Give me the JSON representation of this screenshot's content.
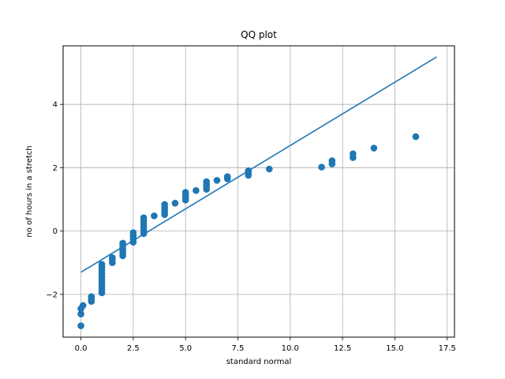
{
  "chart_data": {
    "type": "scatter",
    "title": "QQ plot",
    "xlabel": "standard normal",
    "ylabel": "no of hours in a stretch",
    "xlim": [
      -0.85,
      17.85
    ],
    "ylim": [
      -3.35,
      5.85
    ],
    "xticks": [
      0.0,
      2.5,
      5.0,
      7.5,
      10.0,
      12.5,
      15.0,
      17.5
    ],
    "xtick_labels": [
      "0.0",
      "2.5",
      "5.0",
      "7.5",
      "10.0",
      "12.5",
      "15.0",
      "17.5"
    ],
    "yticks": [
      -2,
      0,
      2,
      4
    ],
    "ytick_labels": [
      "−2",
      "0",
      "2",
      "4"
    ],
    "grid": true,
    "colors": {
      "series": "#1f77b4",
      "grid": "#b0b0b0"
    },
    "series": [
      {
        "kind": "points",
        "points": [
          [
            0,
            -2.99
          ],
          [
            0,
            -2.62
          ],
          [
            0,
            -2.45
          ],
          [
            0.1,
            -2.35
          ],
          [
            0.5,
            -2.22
          ],
          [
            0.5,
            -2.15
          ],
          [
            0.5,
            -2.07
          ],
          [
            1,
            -1.95
          ],
          [
            1,
            -1.85
          ],
          [
            1,
            -1.75
          ],
          [
            1,
            -1.65
          ],
          [
            1,
            -1.55
          ],
          [
            1,
            -1.45
          ],
          [
            1,
            -1.35
          ],
          [
            1,
            -1.25
          ],
          [
            1,
            -1.15
          ],
          [
            1,
            -1.05
          ],
          [
            1.5,
            -1.0
          ],
          [
            1.5,
            -0.92
          ],
          [
            1.5,
            -0.84
          ],
          [
            2,
            -0.78
          ],
          [
            2,
            -0.7
          ],
          [
            2,
            -0.62
          ],
          [
            2,
            -0.54
          ],
          [
            2,
            -0.46
          ],
          [
            2,
            -0.38
          ],
          [
            2.5,
            -0.35
          ],
          [
            2.5,
            -0.25
          ],
          [
            2.5,
            -0.15
          ],
          [
            2.5,
            -0.05
          ],
          [
            3,
            -0.08
          ],
          [
            3,
            0.02
          ],
          [
            3,
            0.12
          ],
          [
            3,
            0.22
          ],
          [
            3,
            0.32
          ],
          [
            3,
            0.42
          ],
          [
            3.5,
            0.48
          ],
          [
            4,
            0.52
          ],
          [
            4,
            0.6
          ],
          [
            4,
            0.68
          ],
          [
            4,
            0.76
          ],
          [
            4,
            0.84
          ],
          [
            4.5,
            0.88
          ],
          [
            5,
            0.98
          ],
          [
            5,
            1.06
          ],
          [
            5,
            1.14
          ],
          [
            5,
            1.22
          ],
          [
            5.5,
            1.28
          ],
          [
            6,
            1.32
          ],
          [
            6,
            1.4
          ],
          [
            6,
            1.48
          ],
          [
            6,
            1.56
          ],
          [
            6.5,
            1.6
          ],
          [
            7,
            1.65
          ],
          [
            7,
            1.72
          ],
          [
            8,
            1.76
          ],
          [
            8,
            1.84
          ],
          [
            8,
            1.9
          ],
          [
            9,
            1.96
          ],
          [
            11.5,
            2.02
          ],
          [
            12,
            2.12
          ],
          [
            12,
            2.22
          ],
          [
            13,
            2.32
          ],
          [
            13,
            2.44
          ],
          [
            14,
            2.62
          ],
          [
            16,
            2.98
          ]
        ]
      },
      {
        "kind": "line",
        "x": [
          0,
          17
        ],
        "y": [
          -1.3,
          5.5
        ]
      }
    ]
  }
}
